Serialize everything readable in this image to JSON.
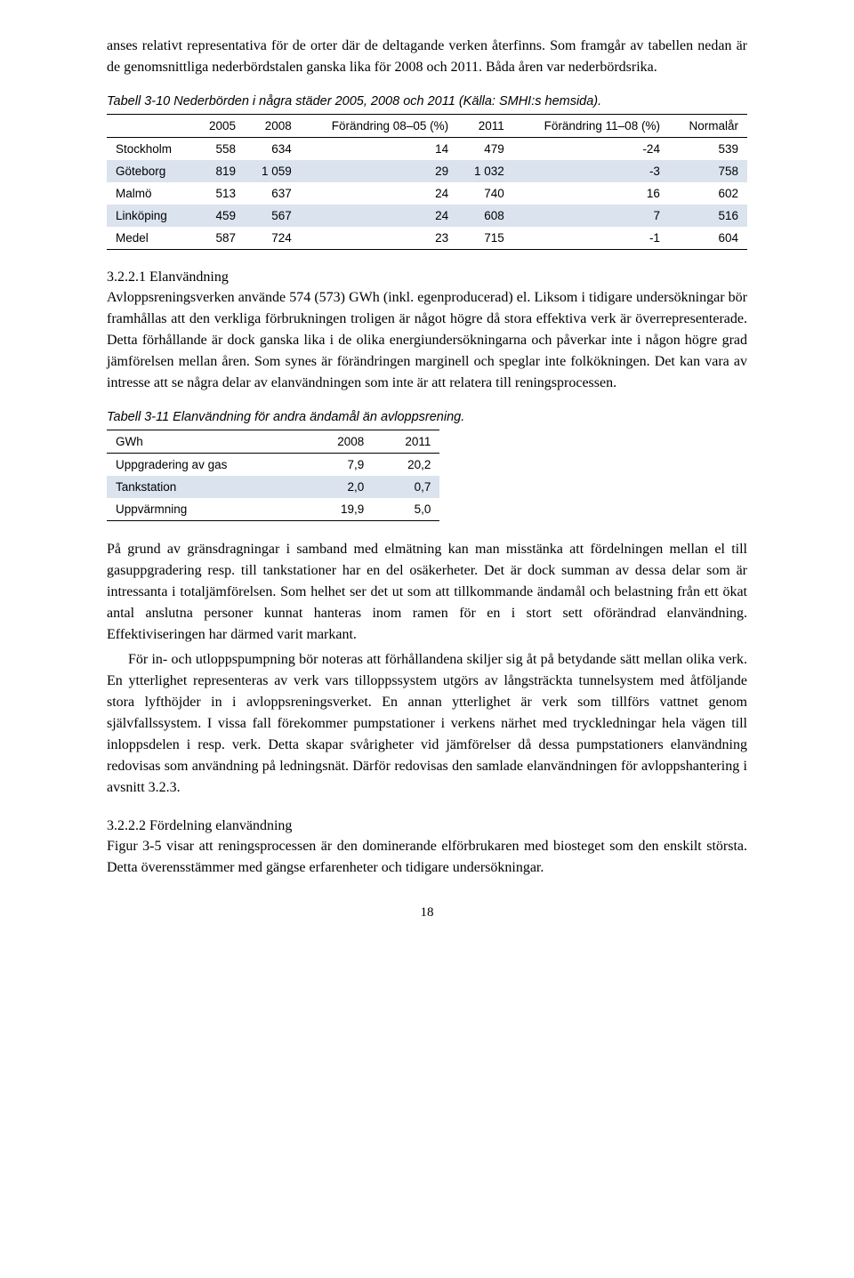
{
  "intro": {
    "p1": "anses relativt representativa för de orter där de deltagande verken återfinns. Som framgår av tabellen nedan är de genomsnittliga nederbördstalen ganska lika för 2008 och 2011. Båda åren var nederbördsrika."
  },
  "table310": {
    "caption": "Tabell 3-10  Nederbörden i några städer 2005, 2008 och 2011 (Källa: SMHI:s hemsida).",
    "columns": [
      "",
      "2005",
      "2008",
      "Förändring 08–05 (%)",
      "2011",
      "Förändring 11–08 (%)",
      "Normalår"
    ],
    "rows": [
      [
        "Stockholm",
        "558",
        "634",
        "14",
        "479",
        "-24",
        "539"
      ],
      [
        "Göteborg",
        "819",
        "1 059",
        "29",
        "1 032",
        "-3",
        "758"
      ],
      [
        "Malmö",
        "513",
        "637",
        "24",
        "740",
        "16",
        "602"
      ],
      [
        "Linköping",
        "459",
        "567",
        "24",
        "608",
        "7",
        "516"
      ],
      [
        "Medel",
        "587",
        "724",
        "23",
        "715",
        "-1",
        "604"
      ]
    ],
    "alt_rows": [
      1,
      3
    ],
    "header_bg": "#ffffff",
    "alt_bg": "#dbe3ef"
  },
  "section3221": {
    "heading": "3.2.2.1  Elanvändning",
    "p1": "Avloppsreningsverken använde 574 (573) GWh (inkl. egenproducerad) el. Liksom i tidigare undersökningar bör framhållas att den verkliga förbrukningen troligen är något högre då stora effektiva verk är överrepresenterade. Detta förhållande är dock ganska lika i de olika energiundersökningarna och påverkar inte i någon högre grad jämförelsen mellan åren. Som synes är förändringen marginell och speglar inte folkökningen. Det kan vara av intresse att se några delar av elanvändningen som inte är att relatera till reningsprocessen."
  },
  "table311": {
    "caption": "Tabell 3-11  Elanvändning för andra ändamål än avloppsrening.",
    "columns": [
      "GWh",
      "2008",
      "2011"
    ],
    "rows": [
      [
        "Uppgradering av gas",
        "7,9",
        "20,2"
      ],
      [
        "Tankstation",
        "2,0",
        "0,7"
      ],
      [
        "Uppvärmning",
        "19,9",
        "5,0"
      ]
    ],
    "alt_rows": [
      1
    ]
  },
  "midtext": {
    "p1": "På grund av gränsdragningar i samband med elmätning kan man misstänka att fördelningen mellan el till gasuppgradering resp. till tankstationer har en del osäkerheter. Det är dock summan av dessa delar som är intressanta i totaljämförelsen. Som helhet ser det ut som att tillkommande ändamål och belastning från ett ökat antal anslutna personer kunnat hanteras inom ramen för en i stort sett oförändrad elanvändning. Effektiviseringen har därmed varit markant.",
    "p2": "För in- och utloppspumpning bör noteras att förhållandena skiljer sig åt på betydande sätt mellan olika verk. En ytterlighet representeras av verk vars tilloppssystem utgörs av långsträckta tunnelsystem med åtföljande stora lyfthöjder in i avloppsreningsverket. En annan ytterlighet är verk som tillförs vattnet genom självfallssystem. I vissa fall förekommer pumpstationer i verkens närhet med tryckledningar hela vägen till inloppsdelen i resp. verk. Detta skapar svårigheter vid jämförelser då dessa pumpstationers elanvändning redovisas som användning på ledningsnät. Därför redovisas den samlade elanvändningen för avloppshantering i avsnitt 3.2.3."
  },
  "section3222": {
    "heading": "3.2.2.2  Fördelning elanvändning",
    "p1": "Figur 3-5 visar att reningsprocessen är den dominerande elförbrukaren med biosteget som den enskilt största. Detta överensstämmer med gängse erfarenheter och tidigare undersökningar."
  },
  "pageNumber": "18"
}
